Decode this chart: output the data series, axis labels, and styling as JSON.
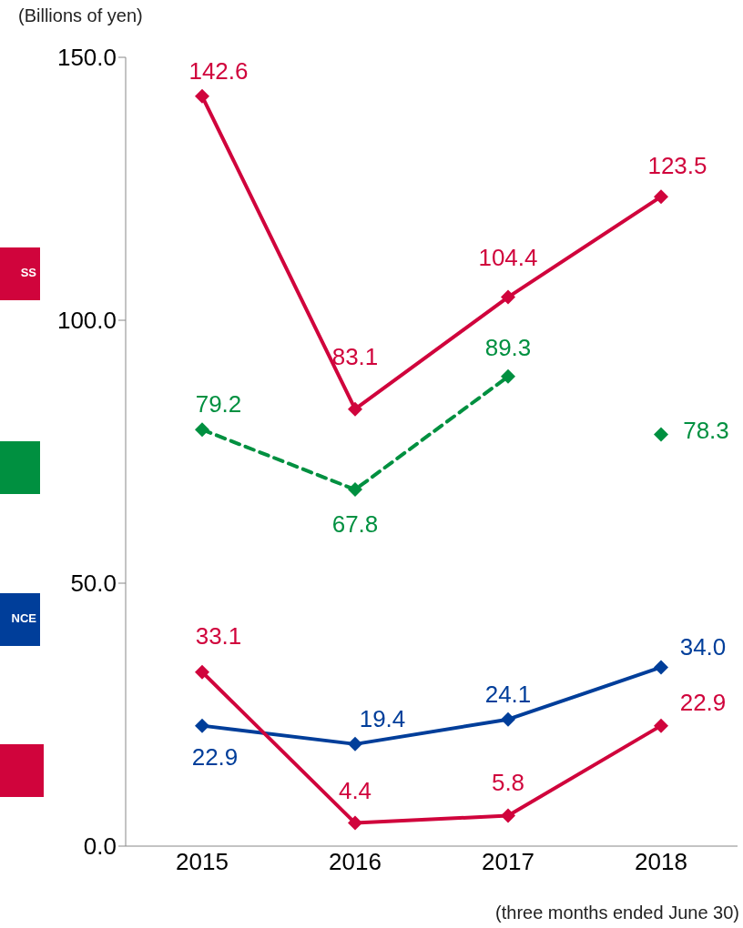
{
  "chart_data": {
    "type": "line",
    "ylabel": "(Billions of yen)",
    "categories": [
      "2015",
      "2016",
      "2017",
      "2018"
    ],
    "series": [
      {
        "color": "#d0043c",
        "values": [
          142.6,
          83.1,
          104.4,
          123.5
        ],
        "value_labels": [
          "142.6",
          "83.1",
          "104.4",
          "123.5"
        ]
      },
      {
        "color": "#009040",
        "values": [
          79.2,
          67.8,
          89.3,
          null
        ],
        "line_style": "dashed",
        "value_labels": [
          "79.2",
          "67.8",
          "89.3",
          null
        ]
      },
      {
        "type": "scatter",
        "color": "#009040",
        "values": [
          null,
          null,
          null,
          78.3
        ],
        "value_labels": [
          null,
          null,
          null,
          "78.3"
        ]
      },
      {
        "color": "#003e9a",
        "values": [
          22.9,
          19.4,
          24.1,
          34.0
        ],
        "value_labels": [
          "22.9",
          "19.4",
          "24.1",
          "34.0"
        ]
      },
      {
        "color": "#d0043c",
        "values": [
          33.1,
          4.4,
          5.8,
          22.9
        ],
        "value_labels": [
          "33.1",
          "4.4",
          "5.8",
          "22.9"
        ]
      }
    ],
    "ylim": [
      0,
      150
    ],
    "yticks": [
      {
        "value": 0,
        "label": "0.0"
      },
      {
        "value": 50,
        "label": "50.0"
      },
      {
        "value": 100,
        "label": "100.0"
      },
      {
        "value": 150,
        "label": "150.0"
      }
    ],
    "grid": false,
    "marker": "diamond",
    "line_style": "solid",
    "annotations": [
      "SS",
      "NCE",
      "(three months ended June 30)"
    ]
  }
}
